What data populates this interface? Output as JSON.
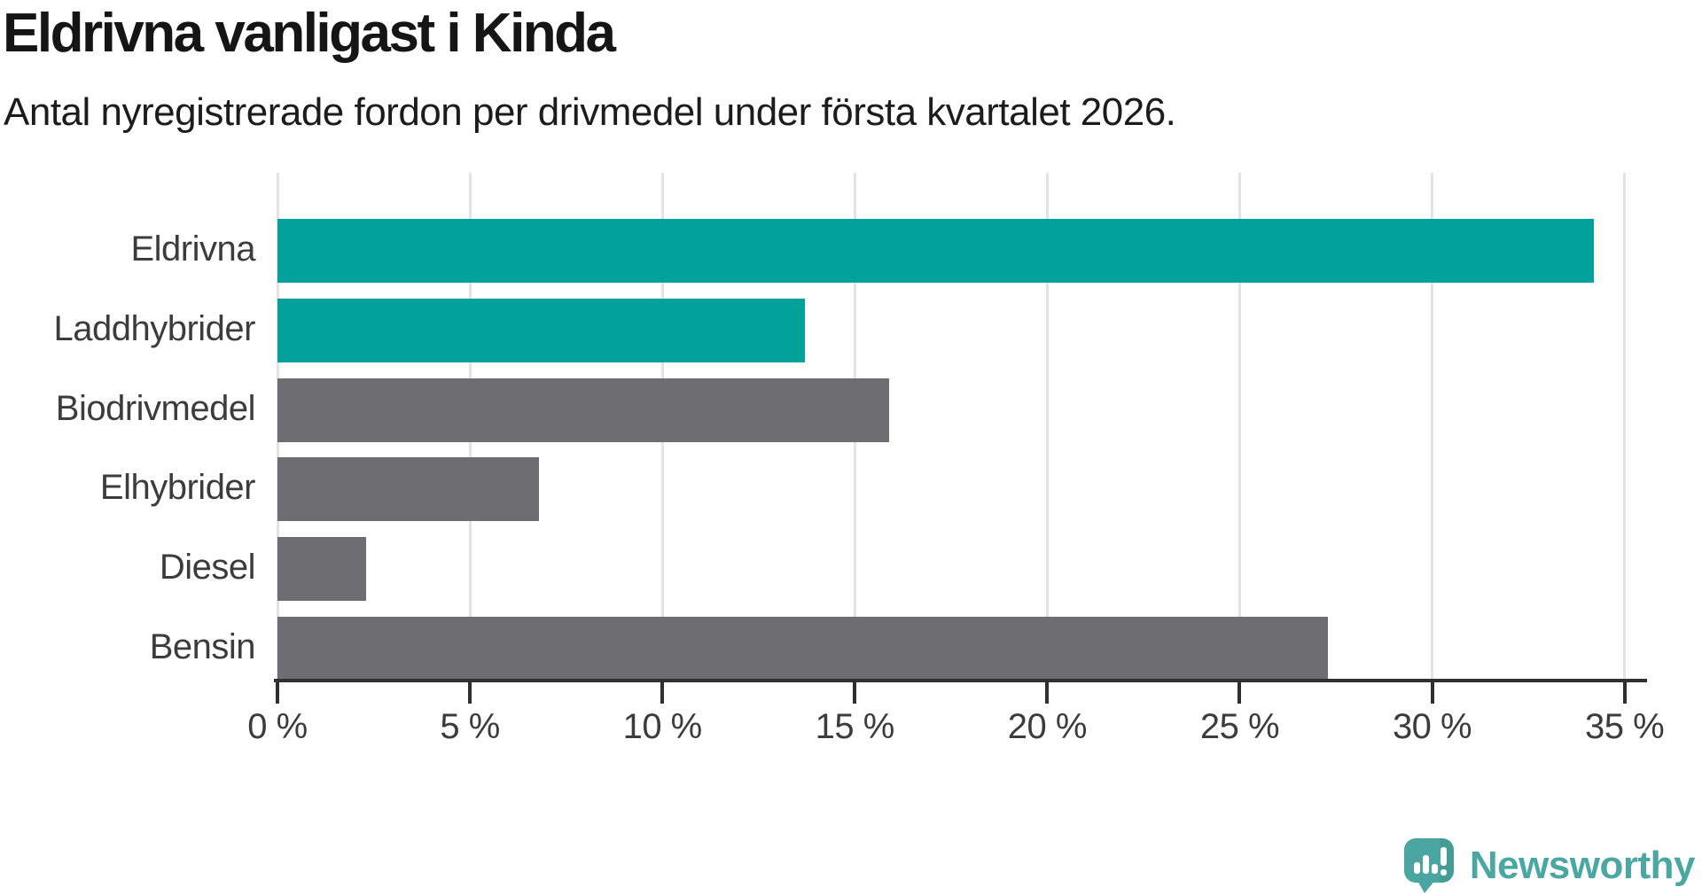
{
  "title": "Eldrivna vanligast i Kinda",
  "subtitle": "Antal nyregistrerade fordon per drivmedel under första kvartalet 2026.",
  "colors": {
    "teal_bar": "#00a29b",
    "gray_bar": "#6d6d72",
    "axis": "#2f2f2f",
    "gridline": "#e3e3e3",
    "tick_label": "#3c3c3c",
    "title_text": "#151515",
    "logo_teal": "#4aa7a2"
  },
  "chart_data": {
    "type": "bar",
    "orientation": "horizontal",
    "title": "Eldrivna vanligast i Kinda",
    "subtitle": "Antal nyregistrerade fordon per drivmedel under första kvartalet 2026.",
    "categories": [
      "Eldrivna",
      "Laddhybrider",
      "Biodrivmedel",
      "Elhybrider",
      "Diesel",
      "Bensin"
    ],
    "values": [
      34.2,
      13.7,
      15.9,
      6.8,
      2.3,
      27.3
    ],
    "unit": "%",
    "bar_colors": [
      "#00a29b",
      "#00a29b",
      "#6d6d72",
      "#6d6d72",
      "#6d6d72",
      "#6d6d72"
    ],
    "x_tick_labels": [
      "0 %",
      "5 %",
      "10 %",
      "15 %",
      "20 %",
      "25 %",
      "30 %",
      "35 %"
    ],
    "x_tick_values": [
      0,
      5,
      10,
      15,
      20,
      25,
      30,
      35
    ],
    "xlim": [
      0,
      35.4
    ],
    "xlabel": "",
    "ylabel": "",
    "grid": true,
    "legend": false
  },
  "logo": {
    "text": "Newsworthy",
    "icon": "newsworthy-logo-icon"
  }
}
